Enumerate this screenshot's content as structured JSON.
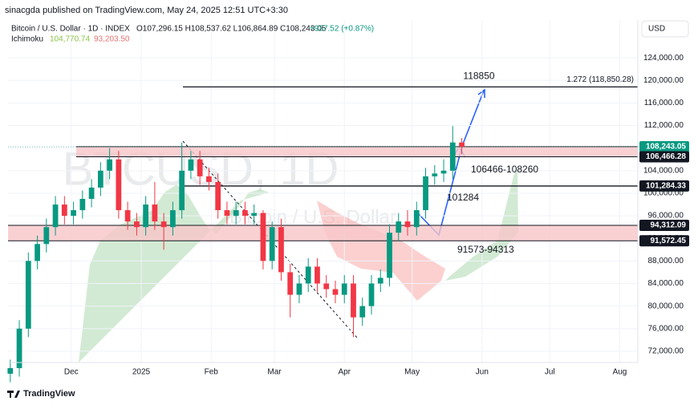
{
  "header": {
    "publisher": "sinacgda published on TradingView.com, May 24, 2025 12:51 UTC+3:30",
    "symbol": "Bitcoin / U.S. Dollar · 1D · INDEX",
    "ohlc": "O107,296.15 H108,537.62 L106,864.89 C108,243.05",
    "change": "+937.52 (+0.87%)",
    "indicator": "Ichimoku",
    "indicator_a": "104,770.74",
    "indicator_b": "93,203.50",
    "currency": "USD",
    "watermark": "BTCUSD, 1D",
    "watermark_sub": "Bitcoin / U.S. Dollar"
  },
  "footer": {
    "brand": "TradingView"
  },
  "chart_data": {
    "type": "candlestick",
    "up_color": "#089981",
    "down_color": "#f23645",
    "x": [
      -27,
      -23,
      -19,
      -15,
      -11,
      -7,
      -3,
      1,
      5,
      9,
      13,
      17,
      21,
      25,
      29,
      33,
      37,
      41,
      45,
      49,
      53,
      57,
      61,
      65,
      69,
      73,
      77,
      81,
      85,
      89,
      93,
      97,
      101,
      105,
      109,
      113,
      117,
      121,
      125,
      129,
      133,
      137,
      141,
      145,
      149,
      153,
      157,
      161,
      165,
      169,
      173
    ],
    "open": [
      68000,
      69000,
      76000,
      88000,
      91000,
      94000,
      98000,
      96000,
      97000,
      99000,
      101000,
      104000,
      106000,
      97000,
      95000,
      94000,
      98000,
      95000,
      94000,
      97000,
      104000,
      106000,
      103000,
      102000,
      97000,
      96000,
      97000,
      96000,
      96500,
      88000,
      94000,
      86000,
      82000,
      84000,
      87000,
      84000,
      83000,
      82000,
      84000,
      78000,
      80000,
      84000,
      85000,
      93000,
      95000,
      94000,
      97000,
      103000,
      103500,
      104000,
      109000
    ],
    "high": [
      70500,
      77500,
      89500,
      92500,
      95500,
      99500,
      99500,
      98500,
      100500,
      102500,
      105500,
      108000,
      107500,
      98500,
      96500,
      99500,
      102000,
      96500,
      98500,
      109000,
      107500,
      107500,
      104500,
      103500,
      98500,
      98500,
      98500,
      98000,
      97000,
      95000,
      95500,
      87500,
      85500,
      88500,
      88500,
      85500,
      84500,
      85500,
      85500,
      81500,
      85500,
      86500,
      94500,
      96500,
      97000,
      98500,
      104500,
      105000,
      106000,
      111900,
      109800
    ],
    "low": [
      66500,
      67500,
      74500,
      86500,
      89500,
      92500,
      94500,
      94500,
      95500,
      97500,
      99500,
      102500,
      95500,
      93500,
      92500,
      92500,
      93500,
      90000,
      92500,
      95500,
      102500,
      101500,
      100500,
      95500,
      94500,
      94500,
      94500,
      94500,
      86500,
      86500,
      84500,
      78000,
      80500,
      82500,
      82500,
      81500,
      80500,
      80500,
      74500,
      76500,
      78500,
      82500,
      83500,
      91500,
      92500,
      92500,
      95500,
      101500,
      102000,
      102500,
      106900
    ],
    "close": [
      69000,
      76000,
      88000,
      91000,
      94000,
      98000,
      96000,
      97000,
      99000,
      101000,
      104000,
      106000,
      97000,
      95000,
      94000,
      98000,
      95000,
      94000,
      97000,
      104000,
      106000,
      103000,
      102000,
      97000,
      96000,
      97000,
      96000,
      96500,
      88000,
      94000,
      86000,
      82000,
      84000,
      87000,
      84000,
      83000,
      82000,
      84000,
      78000,
      80000,
      84000,
      85000,
      93000,
      95000,
      94000,
      97000,
      103000,
      103500,
      104000,
      109000,
      108243.05
    ],
    "xlim": [
      -28,
      251
    ],
    "xticks": [
      {
        "value": 0,
        "label": "Dec"
      },
      {
        "value": 31,
        "label": "2025"
      },
      {
        "value": 62,
        "label": "Feb"
      },
      {
        "value": 90,
        "label": "Mar"
      },
      {
        "value": 121,
        "label": "Apr"
      },
      {
        "value": 151,
        "label": "May"
      },
      {
        "value": 182,
        "label": "Jun"
      },
      {
        "value": 212,
        "label": "Jul"
      },
      {
        "value": 243,
        "label": "Aug"
      }
    ],
    "ylim": [
      70000,
      130700
    ],
    "yticks": [
      {
        "value": 72000,
        "label": "72,000.00"
      },
      {
        "value": 76000,
        "label": "76,000.00"
      },
      {
        "value": 80000,
        "label": "80,000.00"
      },
      {
        "value": 84000,
        "label": "84,000.00"
      },
      {
        "value": 88000,
        "label": "88,000.00"
      },
      {
        "value": 92000,
        "label": "92,000.00"
      },
      {
        "value": 96000,
        "label": "96,000.00"
      },
      {
        "value": 100000,
        "label": "100,000.00"
      },
      {
        "value": 104000,
        "label": "104,000.00"
      },
      {
        "value": 108000,
        "label": "108,000.00"
      },
      {
        "value": 112000,
        "label": "112,000.00"
      },
      {
        "value": 116000,
        "label": "116,000.00"
      },
      {
        "value": 120000,
        "label": "120,000.00"
      },
      {
        "value": 124000,
        "label": "124,000.00"
      }
    ],
    "price_labels": [
      {
        "value": 108243.05,
        "label": "108,243.05"
      },
      {
        "value": 106466.28,
        "label": "106,466.28"
      },
      {
        "value": 101284.33,
        "label": "101,284.33"
      },
      {
        "value": 94312.09,
        "label": "94,312.09"
      },
      {
        "value": 91572.45,
        "label": "91,572.45"
      }
    ],
    "zones": [
      {
        "low": 106466,
        "high": 108260,
        "label": "106466-108260"
      },
      {
        "low": 91573,
        "high": 94313,
        "label": "91573-94313"
      }
    ],
    "levels": [
      {
        "value": 118850,
        "label": "118850",
        "note": "1.272 (118,850.28)"
      },
      {
        "value": 101284,
        "label": "101284"
      }
    ]
  }
}
